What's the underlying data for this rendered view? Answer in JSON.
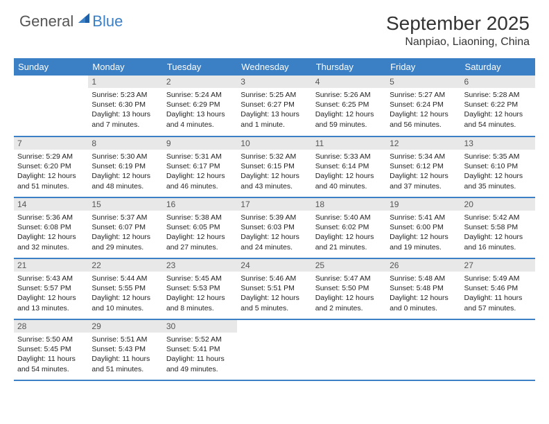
{
  "logo": {
    "general": "General",
    "blue": "Blue"
  },
  "title": "September 2025",
  "location": "Nanpiao, Liaoning, China",
  "colors": {
    "header_bg": "#3b7fc4",
    "header_text": "#ffffff",
    "daynum_bg": "#e8e8e8",
    "daynum_text": "#555555",
    "body_text": "#222222",
    "rule": "#3b7fc4",
    "page_bg": "#ffffff",
    "logo_gray": "#555555",
    "logo_blue": "#3b7fc4"
  },
  "typography": {
    "month_title_fontsize": 28,
    "location_fontsize": 16,
    "day_header_fontsize": 13,
    "daynum_fontsize": 12,
    "body_fontsize": 10.5
  },
  "day_names": [
    "Sunday",
    "Monday",
    "Tuesday",
    "Wednesday",
    "Thursday",
    "Friday",
    "Saturday"
  ],
  "weeks": [
    [
      {
        "blank": true
      },
      {
        "n": "1",
        "sunrise": "Sunrise: 5:23 AM",
        "sunset": "Sunset: 6:30 PM",
        "daylight1": "Daylight: 13 hours",
        "daylight2": "and 7 minutes."
      },
      {
        "n": "2",
        "sunrise": "Sunrise: 5:24 AM",
        "sunset": "Sunset: 6:29 PM",
        "daylight1": "Daylight: 13 hours",
        "daylight2": "and 4 minutes."
      },
      {
        "n": "3",
        "sunrise": "Sunrise: 5:25 AM",
        "sunset": "Sunset: 6:27 PM",
        "daylight1": "Daylight: 13 hours",
        "daylight2": "and 1 minute."
      },
      {
        "n": "4",
        "sunrise": "Sunrise: 5:26 AM",
        "sunset": "Sunset: 6:25 PM",
        "daylight1": "Daylight: 12 hours",
        "daylight2": "and 59 minutes."
      },
      {
        "n": "5",
        "sunrise": "Sunrise: 5:27 AM",
        "sunset": "Sunset: 6:24 PM",
        "daylight1": "Daylight: 12 hours",
        "daylight2": "and 56 minutes."
      },
      {
        "n": "6",
        "sunrise": "Sunrise: 5:28 AM",
        "sunset": "Sunset: 6:22 PM",
        "daylight1": "Daylight: 12 hours",
        "daylight2": "and 54 minutes."
      }
    ],
    [
      {
        "n": "7",
        "sunrise": "Sunrise: 5:29 AM",
        "sunset": "Sunset: 6:20 PM",
        "daylight1": "Daylight: 12 hours",
        "daylight2": "and 51 minutes."
      },
      {
        "n": "8",
        "sunrise": "Sunrise: 5:30 AM",
        "sunset": "Sunset: 6:19 PM",
        "daylight1": "Daylight: 12 hours",
        "daylight2": "and 48 minutes."
      },
      {
        "n": "9",
        "sunrise": "Sunrise: 5:31 AM",
        "sunset": "Sunset: 6:17 PM",
        "daylight1": "Daylight: 12 hours",
        "daylight2": "and 46 minutes."
      },
      {
        "n": "10",
        "sunrise": "Sunrise: 5:32 AM",
        "sunset": "Sunset: 6:15 PM",
        "daylight1": "Daylight: 12 hours",
        "daylight2": "and 43 minutes."
      },
      {
        "n": "11",
        "sunrise": "Sunrise: 5:33 AM",
        "sunset": "Sunset: 6:14 PM",
        "daylight1": "Daylight: 12 hours",
        "daylight2": "and 40 minutes."
      },
      {
        "n": "12",
        "sunrise": "Sunrise: 5:34 AM",
        "sunset": "Sunset: 6:12 PM",
        "daylight1": "Daylight: 12 hours",
        "daylight2": "and 37 minutes."
      },
      {
        "n": "13",
        "sunrise": "Sunrise: 5:35 AM",
        "sunset": "Sunset: 6:10 PM",
        "daylight1": "Daylight: 12 hours",
        "daylight2": "and 35 minutes."
      }
    ],
    [
      {
        "n": "14",
        "sunrise": "Sunrise: 5:36 AM",
        "sunset": "Sunset: 6:08 PM",
        "daylight1": "Daylight: 12 hours",
        "daylight2": "and 32 minutes."
      },
      {
        "n": "15",
        "sunrise": "Sunrise: 5:37 AM",
        "sunset": "Sunset: 6:07 PM",
        "daylight1": "Daylight: 12 hours",
        "daylight2": "and 29 minutes."
      },
      {
        "n": "16",
        "sunrise": "Sunrise: 5:38 AM",
        "sunset": "Sunset: 6:05 PM",
        "daylight1": "Daylight: 12 hours",
        "daylight2": "and 27 minutes."
      },
      {
        "n": "17",
        "sunrise": "Sunrise: 5:39 AM",
        "sunset": "Sunset: 6:03 PM",
        "daylight1": "Daylight: 12 hours",
        "daylight2": "and 24 minutes."
      },
      {
        "n": "18",
        "sunrise": "Sunrise: 5:40 AM",
        "sunset": "Sunset: 6:02 PM",
        "daylight1": "Daylight: 12 hours",
        "daylight2": "and 21 minutes."
      },
      {
        "n": "19",
        "sunrise": "Sunrise: 5:41 AM",
        "sunset": "Sunset: 6:00 PM",
        "daylight1": "Daylight: 12 hours",
        "daylight2": "and 19 minutes."
      },
      {
        "n": "20",
        "sunrise": "Sunrise: 5:42 AM",
        "sunset": "Sunset: 5:58 PM",
        "daylight1": "Daylight: 12 hours",
        "daylight2": "and 16 minutes."
      }
    ],
    [
      {
        "n": "21",
        "sunrise": "Sunrise: 5:43 AM",
        "sunset": "Sunset: 5:57 PM",
        "daylight1": "Daylight: 12 hours",
        "daylight2": "and 13 minutes."
      },
      {
        "n": "22",
        "sunrise": "Sunrise: 5:44 AM",
        "sunset": "Sunset: 5:55 PM",
        "daylight1": "Daylight: 12 hours",
        "daylight2": "and 10 minutes."
      },
      {
        "n": "23",
        "sunrise": "Sunrise: 5:45 AM",
        "sunset": "Sunset: 5:53 PM",
        "daylight1": "Daylight: 12 hours",
        "daylight2": "and 8 minutes."
      },
      {
        "n": "24",
        "sunrise": "Sunrise: 5:46 AM",
        "sunset": "Sunset: 5:51 PM",
        "daylight1": "Daylight: 12 hours",
        "daylight2": "and 5 minutes."
      },
      {
        "n": "25",
        "sunrise": "Sunrise: 5:47 AM",
        "sunset": "Sunset: 5:50 PM",
        "daylight1": "Daylight: 12 hours",
        "daylight2": "and 2 minutes."
      },
      {
        "n": "26",
        "sunrise": "Sunrise: 5:48 AM",
        "sunset": "Sunset: 5:48 PM",
        "daylight1": "Daylight: 12 hours",
        "daylight2": "and 0 minutes."
      },
      {
        "n": "27",
        "sunrise": "Sunrise: 5:49 AM",
        "sunset": "Sunset: 5:46 PM",
        "daylight1": "Daylight: 11 hours",
        "daylight2": "and 57 minutes."
      }
    ],
    [
      {
        "n": "28",
        "sunrise": "Sunrise: 5:50 AM",
        "sunset": "Sunset: 5:45 PM",
        "daylight1": "Daylight: 11 hours",
        "daylight2": "and 54 minutes."
      },
      {
        "n": "29",
        "sunrise": "Sunrise: 5:51 AM",
        "sunset": "Sunset: 5:43 PM",
        "daylight1": "Daylight: 11 hours",
        "daylight2": "and 51 minutes."
      },
      {
        "n": "30",
        "sunrise": "Sunrise: 5:52 AM",
        "sunset": "Sunset: 5:41 PM",
        "daylight1": "Daylight: 11 hours",
        "daylight2": "and 49 minutes."
      },
      {
        "blank": true
      },
      {
        "blank": true
      },
      {
        "blank": true
      },
      {
        "blank": true
      }
    ]
  ]
}
